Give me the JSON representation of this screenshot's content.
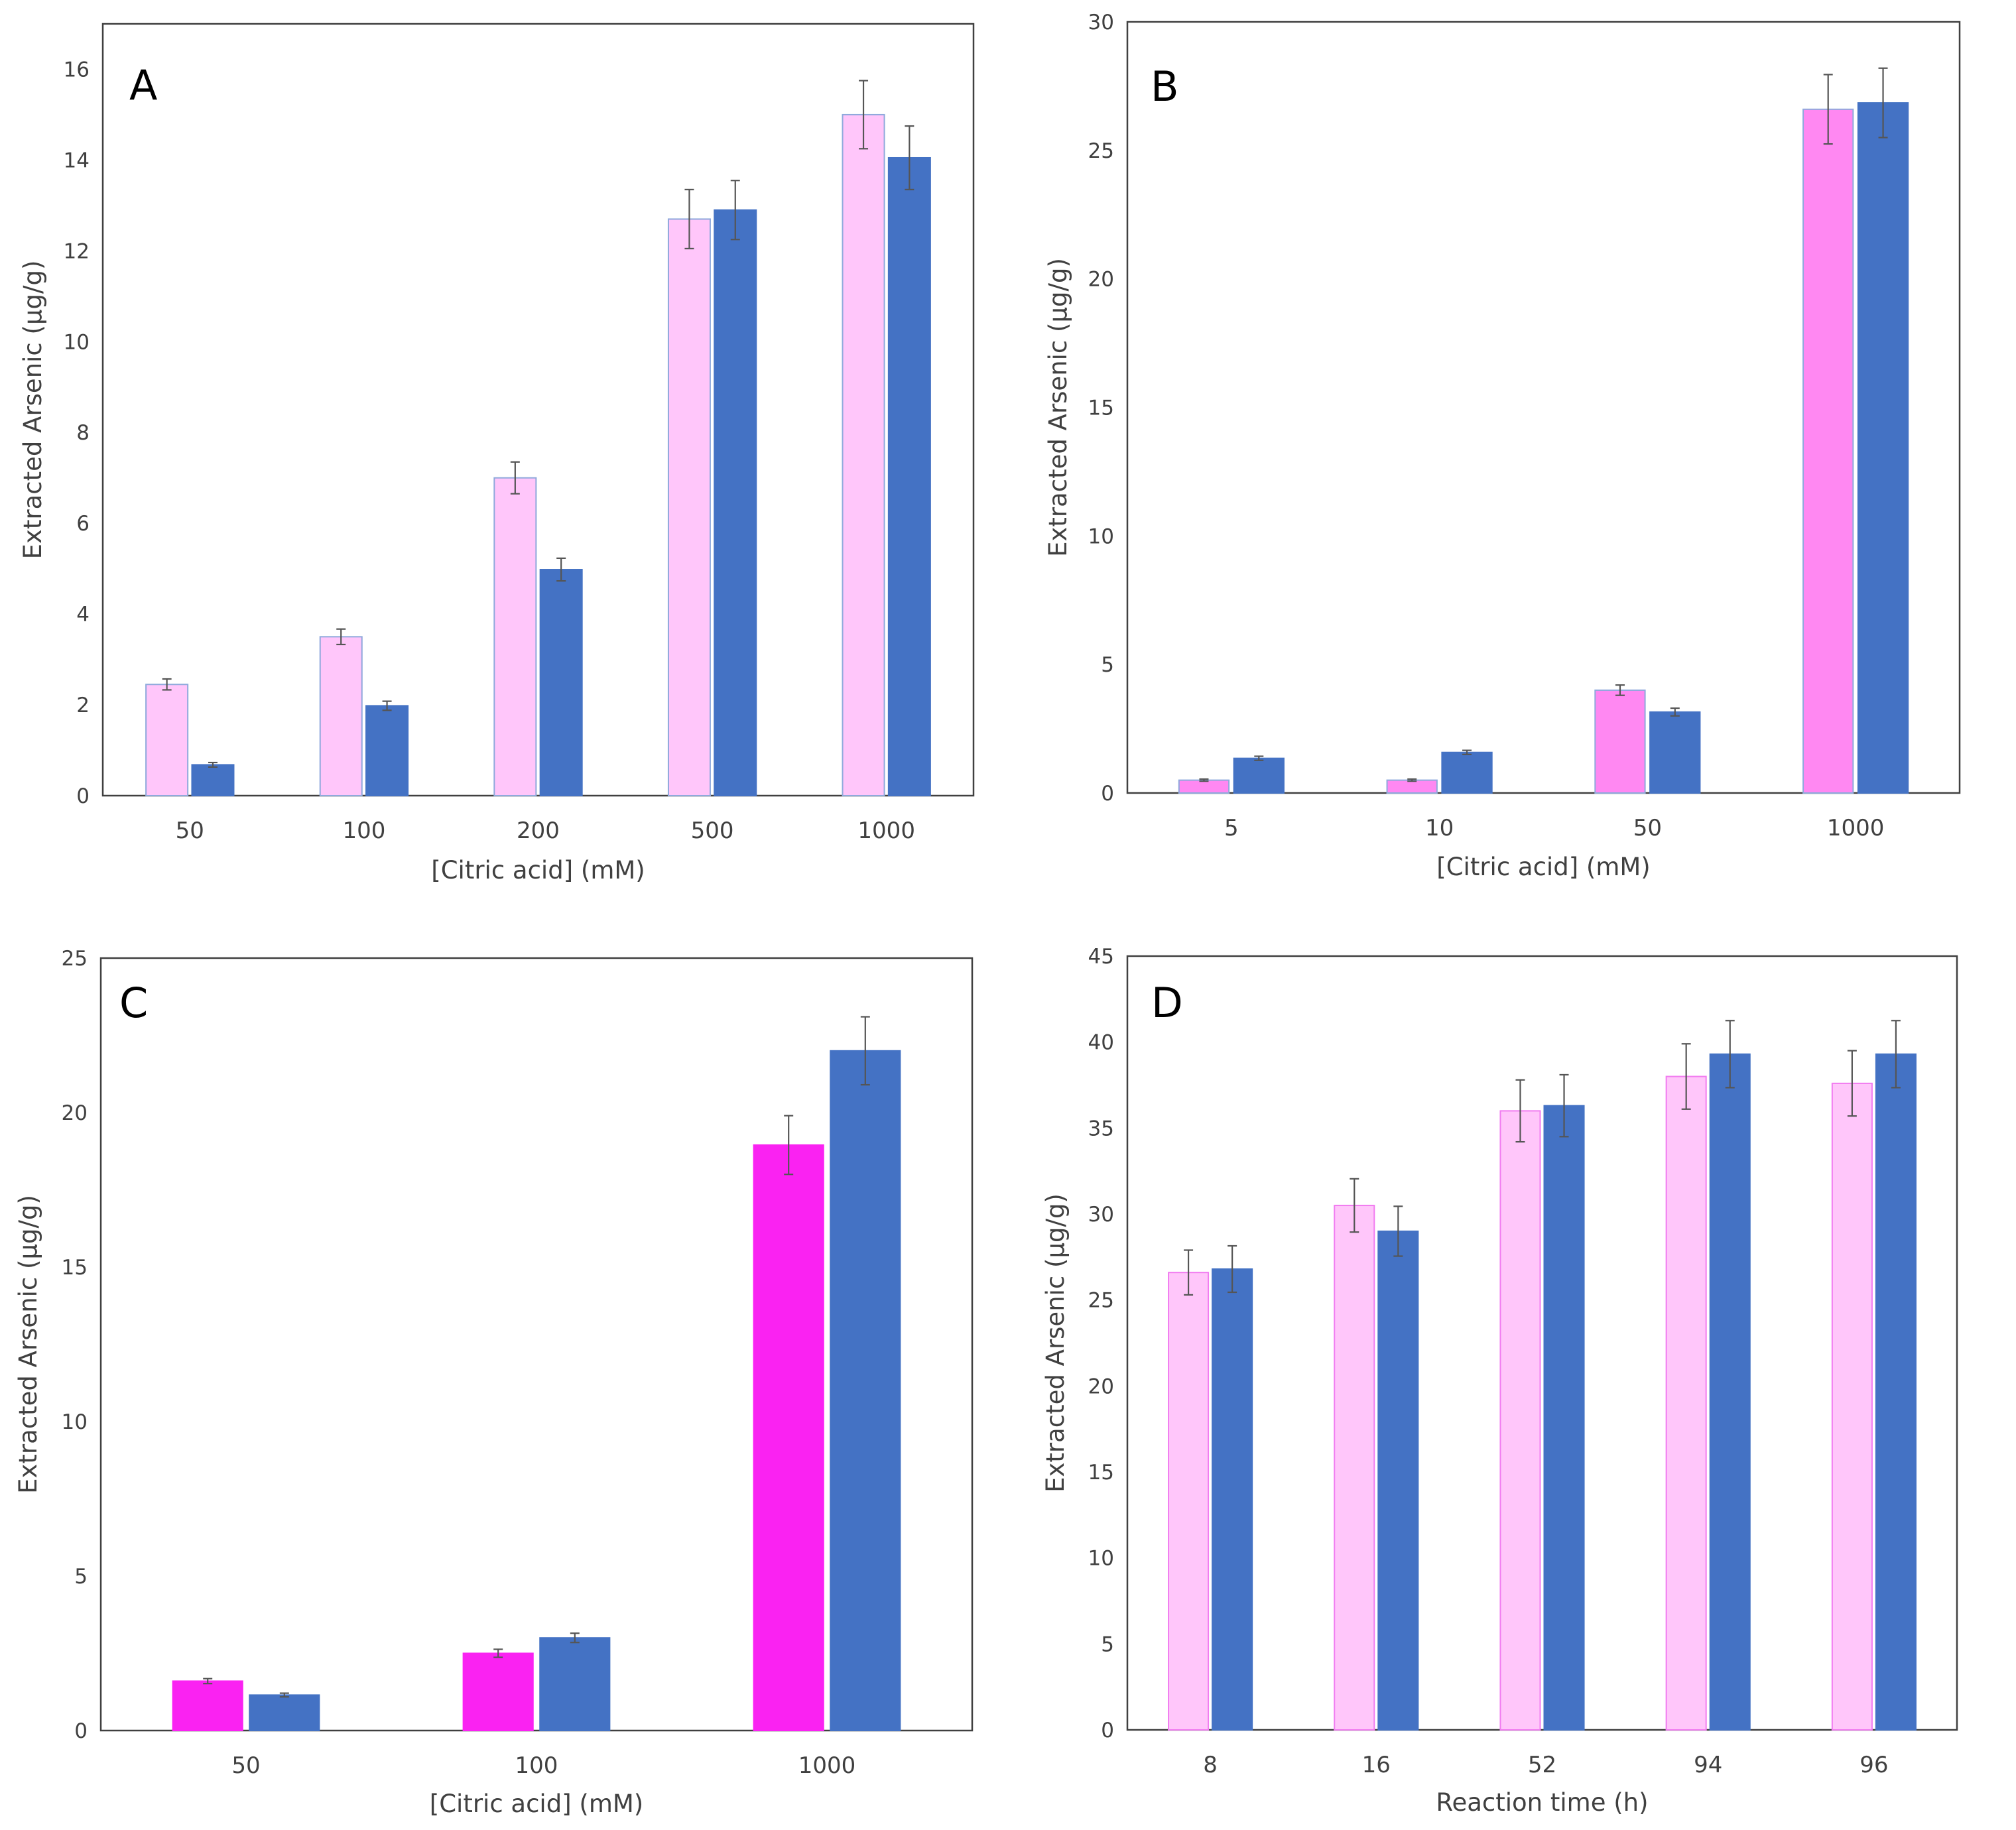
{
  "colors": {
    "blue": "#4472C4",
    "pink_light_fill": "#FFC6FA",
    "pink_light_edge": "#8FA9DC",
    "pink_light_edge_magenta": "#F17CF0",
    "pink_mid": "#FF88F2",
    "magenta": "#FA22F2",
    "error_bar": "#555555"
  },
  "chart_data": [
    {
      "panel": "A",
      "type": "bar",
      "xlabel": "[Citric acid] (mM)",
      "ylabel": "Extracted Arsenic (µg/g)",
      "ylim": [
        0,
        17
      ],
      "yticks": [
        0,
        2,
        4,
        6,
        8,
        10,
        12,
        14,
        16
      ],
      "categories": [
        "50",
        "100",
        "200",
        "500",
        "1000"
      ],
      "series": [
        {
          "name": "pink",
          "style": "light",
          "values": [
            2.45,
            3.5,
            7.0,
            12.7,
            15.0
          ],
          "errors": [
            0.12,
            0.17,
            0.35,
            0.65,
            0.75
          ]
        },
        {
          "name": "blue",
          "style": "blue",
          "values": [
            0.68,
            1.98,
            4.98,
            12.9,
            14.05
          ],
          "errors": [
            0.05,
            0.1,
            0.25,
            0.65,
            0.7
          ]
        }
      ]
    },
    {
      "panel": "B",
      "type": "bar",
      "xlabel": "[Citric acid] (mM)",
      "ylabel": "Extracted Arsenic (µg/g)",
      "ylim": [
        0,
        30
      ],
      "yticks": [
        0,
        5,
        10,
        15,
        20,
        25,
        30
      ],
      "categories": [
        "5",
        "10",
        "50",
        "1000"
      ],
      "series": [
        {
          "name": "pink",
          "style": "mid",
          "values": [
            0.5,
            0.5,
            4.0,
            26.6
          ],
          "errors": [
            0.04,
            0.04,
            0.2,
            1.35
          ]
        },
        {
          "name": "blue",
          "style": "blue",
          "values": [
            1.35,
            1.58,
            3.15,
            26.85
          ],
          "errors": [
            0.08,
            0.08,
            0.15,
            1.35
          ]
        }
      ]
    },
    {
      "panel": "C",
      "type": "bar",
      "xlabel": "[Citric acid] (mM)",
      "ylabel": "Extracted Arsenic (µg/g)",
      "ylim": [
        0,
        25
      ],
      "yticks": [
        0,
        5,
        10,
        15,
        20,
        25
      ],
      "categories": [
        "50",
        "100",
        "1000"
      ],
      "series": [
        {
          "name": "pink",
          "style": "magenta",
          "values": [
            1.6,
            2.5,
            18.95
          ],
          "errors": [
            0.08,
            0.13,
            0.95
          ]
        },
        {
          "name": "blue",
          "style": "blue",
          "values": [
            1.15,
            3.0,
            22.0
          ],
          "errors": [
            0.06,
            0.15,
            1.1
          ]
        }
      ]
    },
    {
      "panel": "D",
      "type": "bar",
      "xlabel": "Reaction time (h)",
      "ylabel": "Extracted Arsenic (µg/g)",
      "ylim": [
        0,
        45
      ],
      "yticks": [
        0,
        5,
        10,
        15,
        20,
        25,
        30,
        35,
        40,
        45
      ],
      "categories": [
        "8",
        "16",
        "52",
        "94",
        "96"
      ],
      "series": [
        {
          "name": "pink",
          "style": "light_magenta_edge",
          "values": [
            26.6,
            30.5,
            36.0,
            38.0,
            37.6
          ],
          "errors": [
            1.3,
            1.55,
            1.8,
            1.9,
            1.9
          ]
        },
        {
          "name": "blue",
          "style": "blue",
          "values": [
            26.8,
            29.0,
            36.3,
            39.3,
            39.3
          ],
          "errors": [
            1.35,
            1.45,
            1.8,
            1.95,
            1.95
          ]
        }
      ]
    }
  ]
}
